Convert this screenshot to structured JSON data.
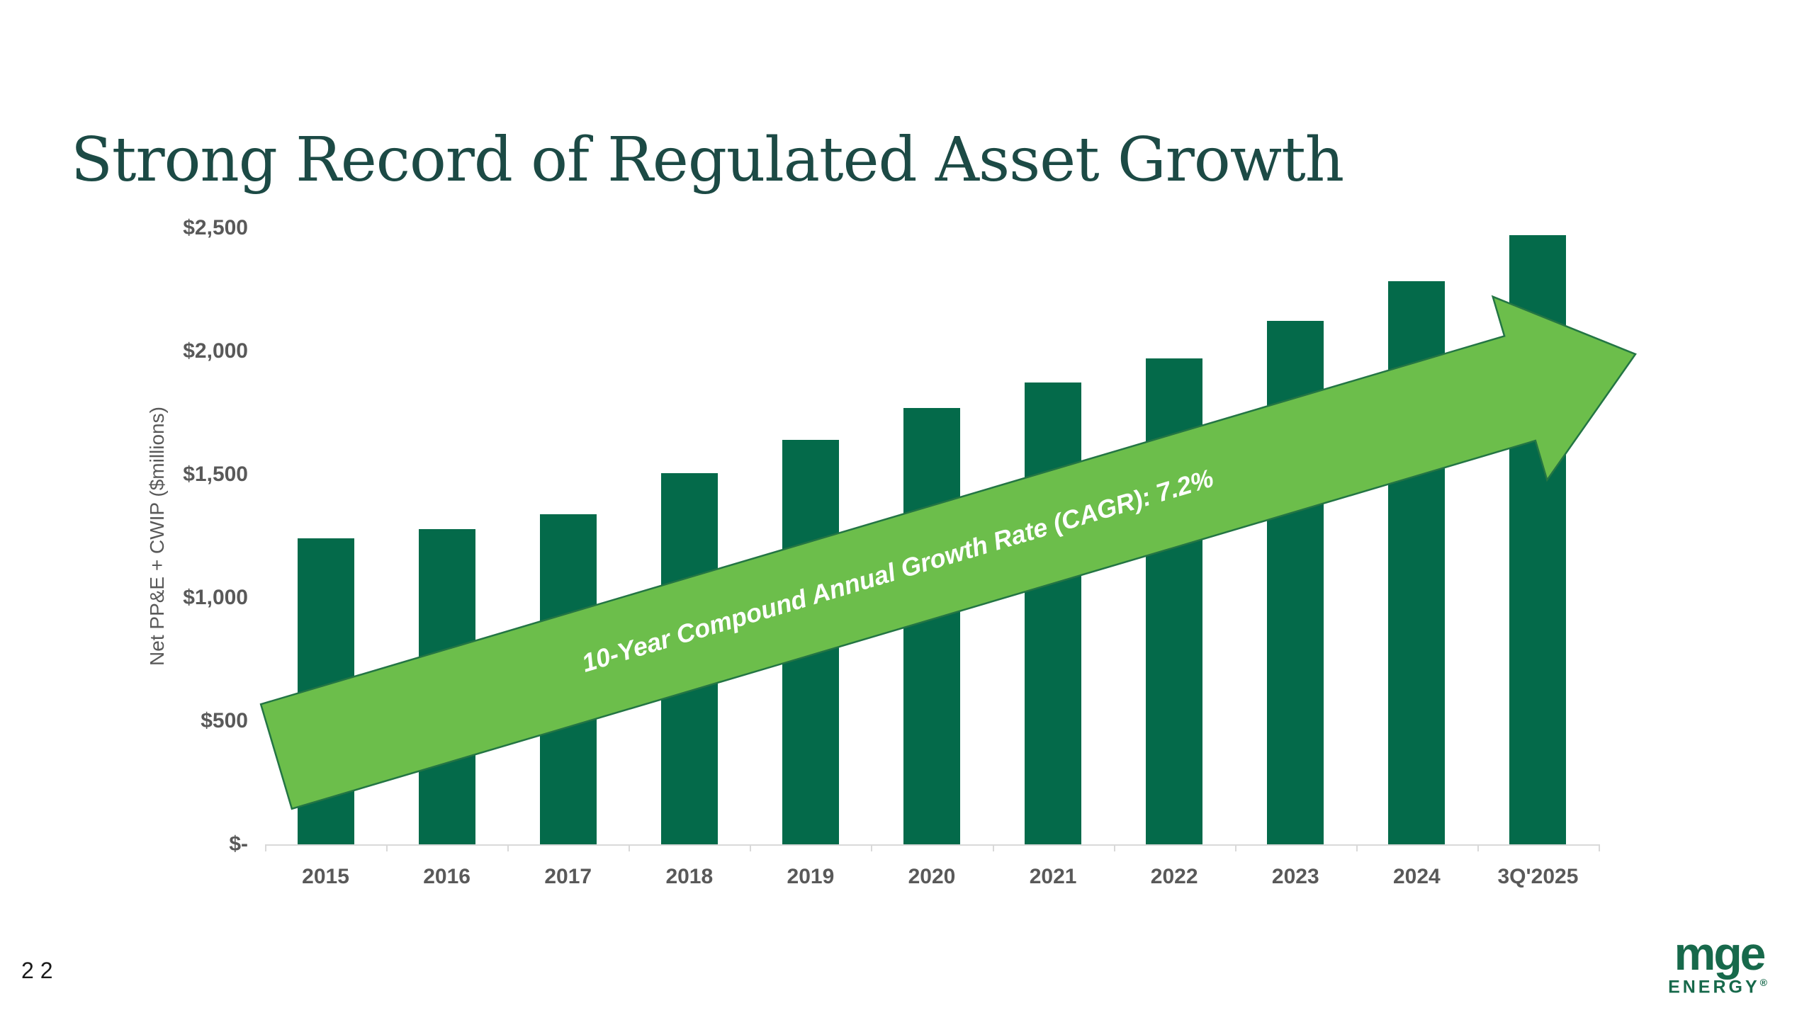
{
  "slide": {
    "title": "Strong Record of Regulated Asset Growth",
    "page_number": "22"
  },
  "logo": {
    "brand": "mge",
    "sub": "ENERGY",
    "registered": "®"
  },
  "chart_data": {
    "type": "bar",
    "title": "",
    "xlabel": "",
    "ylabel": "Net PP&E + CWIP ($millions)",
    "categories": [
      "2015",
      "2016",
      "2017",
      "2018",
      "2019",
      "2020",
      "2021",
      "2022",
      "2023",
      "2024",
      "3Q'2025"
    ],
    "values": [
      1240,
      1280,
      1340,
      1505,
      1640,
      1770,
      1875,
      1970,
      2125,
      2285,
      2470
    ],
    "ylim": [
      0,
      2500
    ],
    "ytick_step": 500,
    "ytick_labels": [
      "$-",
      "$500",
      "$1,000",
      "$1,500",
      "$2,000",
      "$2,500"
    ],
    "grid": false,
    "legend": false,
    "annotation": "10-Year Compound Annual Growth Rate (CAGR): 7.2%",
    "colors": {
      "bar": "#046a4a",
      "arrow_fill": "#6cbe4b",
      "arrow_stroke": "#237544",
      "annotation_text": "#ffffff",
      "axis": "#d9d9d9",
      "tick_text": "#595959",
      "title_text": "#1c4a45",
      "logo_green": "#17694b"
    }
  }
}
